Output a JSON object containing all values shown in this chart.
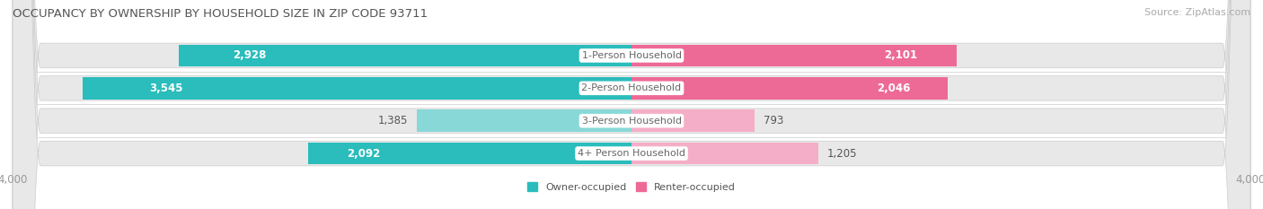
{
  "title": "OCCUPANCY BY OWNERSHIP BY HOUSEHOLD SIZE IN ZIP CODE 93711",
  "source": "Source: ZipAtlas.com",
  "categories": [
    "1-Person Household",
    "2-Person Household",
    "3-Person Household",
    "4+ Person Household"
  ],
  "owner_values": [
    2928,
    3545,
    1385,
    2092
  ],
  "renter_values": [
    2101,
    2046,
    793,
    1205
  ],
  "owner_color_dark": "#2bbcbc",
  "owner_color_light": "#88d8d8",
  "renter_color_dark": "#ee6a96",
  "renter_color_light": "#f5aec8",
  "bar_bg_color": "#e8e8e8",
  "axis_max": 4000,
  "legend_owner": "Owner-occupied",
  "legend_renter": "Renter-occupied",
  "title_fontsize": 9.5,
  "source_fontsize": 8,
  "label_fontsize": 8.5,
  "axis_label_fontsize": 8.5,
  "category_fontsize": 8,
  "background_color": "#ffffff",
  "bar_height": 0.68,
  "owner_dark_threshold": 2000,
  "renter_dark_threshold": 1500
}
